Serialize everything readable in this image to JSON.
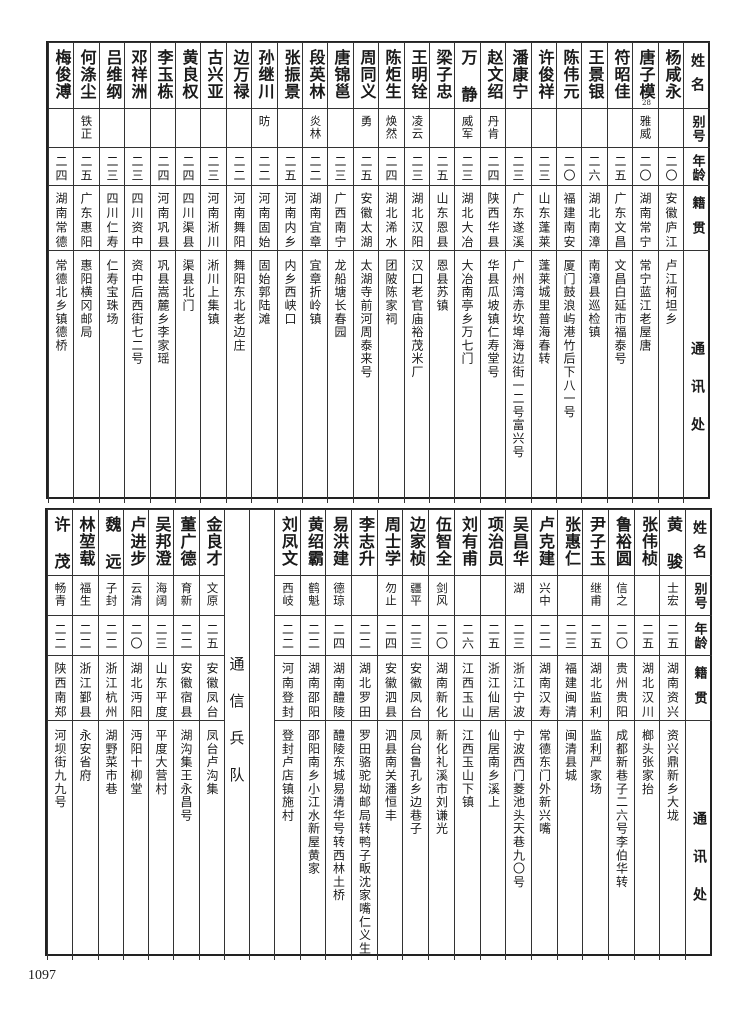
{
  "headers": {
    "name": "姓名",
    "alias": "别号",
    "age": "年龄",
    "origin": "籍贯",
    "address": "通讯处"
  },
  "top_table": {
    "rows": [
      {
        "name": "杨咸永",
        "alias": "",
        "age": "二〇",
        "origin": "安徽庐江",
        "address": "卢江柯坦乡"
      },
      {
        "name": "唐子模",
        "note": "28",
        "alias": "雅威",
        "age": "二〇",
        "origin": "湖南常宁",
        "address": "常宁蓝江老屋唐"
      },
      {
        "name": "符昭佳",
        "alias": "",
        "age": "二五",
        "origin": "广东文昌",
        "address": "文昌白延市福泰号"
      },
      {
        "name": "王景银",
        "alias": "",
        "age": "二六",
        "origin": "湖北南漳",
        "address": "南漳县巡检镇"
      },
      {
        "name": "陈伟元",
        "alias": "",
        "age": "二〇",
        "origin": "福建南安",
        "address": "厦门鼓浪屿港竹后下八一号"
      },
      {
        "name": "许俊祥",
        "alias": "",
        "age": "二三",
        "origin": "山东蓬莱",
        "address": "蓬莱城里普海春转"
      },
      {
        "name": "潘康宁",
        "alias": "",
        "age": "二三",
        "origin": "广东遂溪",
        "address": "广州湾赤坎埠海边街一二号富兴号"
      },
      {
        "name": "赵文绍",
        "alias": "丹肯",
        "age": "二四",
        "origin": "陕西华县",
        "address": "华县瓜坡镇仁寿堂号"
      },
      {
        "name": "万 静",
        "alias": "威军",
        "age": "二三",
        "origin": "湖北大冶",
        "address": "大冶南亭乡万七门"
      },
      {
        "name": "梁子忠",
        "alias": "",
        "age": "二五",
        "origin": "山东恩县",
        "address": "恩县苏镇"
      },
      {
        "name": "王明铨",
        "alias": "凌云",
        "age": "二三",
        "origin": "湖北汉阳",
        "address": "汉口老官庙裕茂米厂"
      },
      {
        "name": "陈炬生",
        "alias": "焕然",
        "age": "二四",
        "origin": "湖北浠水",
        "address": "团陂陈家祠"
      },
      {
        "name": "周同义",
        "alias": "勇",
        "age": "二五",
        "origin": "安徽太湖",
        "address": "太湖寺前河周泰来号"
      },
      {
        "name": "唐锦邕",
        "alias": "",
        "age": "二三",
        "origin": "广西南宁",
        "address": "龙船塘长春园"
      },
      {
        "name": "段英林",
        "alias": "炎林",
        "age": "二二",
        "origin": "湖南宜章",
        "address": "宜章折岭镇"
      },
      {
        "name": "张振景",
        "alias": "",
        "age": "二五",
        "origin": "河南内乡",
        "address": "内乡西峡口"
      },
      {
        "name": "孙继川",
        "alias": "昉",
        "age": "二二",
        "origin": "河南固始",
        "address": "固始郭陆滩"
      },
      {
        "name": "边万禄",
        "alias": "",
        "age": "二二",
        "origin": "河南舞阳",
        "address": "舞阳东北老边庄"
      },
      {
        "name": "古兴亚",
        "alias": "",
        "age": "二三",
        "origin": "河南淅川",
        "address": "淅川上集镇"
      },
      {
        "name": "黄良权",
        "alias": "",
        "age": "二四",
        "origin": "四川渠县",
        "address": "渠县北门"
      },
      {
        "name": "李玉栋",
        "alias": "",
        "age": "二四",
        "origin": "河南巩县",
        "address": "巩县嵩麓乡李家瑶"
      },
      {
        "name": "邓祥洲",
        "alias": "",
        "age": "二三",
        "origin": "四川资中",
        "address": "资中后西街七二号"
      },
      {
        "name": "吕维纲",
        "alias": "",
        "age": "二三",
        "origin": "四川仁寿",
        "address": "仁寿宝珠场"
      },
      {
        "name": "何涤尘",
        "alias": "铁正",
        "age": "二五",
        "origin": "广东惠阳",
        "address": "惠阳横冈邮局"
      },
      {
        "name": "梅俊溥",
        "alias": "",
        "age": "二四",
        "origin": "湖南常德",
        "address": "常德北乡镇德桥"
      }
    ]
  },
  "bottom_table": {
    "right_group": [
      {
        "name": "黄 骏",
        "alias": "士宏",
        "age": "二五",
        "origin": "湖南资兴",
        "address": "资兴鼎新乡大垅"
      },
      {
        "name": "张伟桢",
        "alias": "",
        "age": "二五",
        "origin": "湖北汉川",
        "address": "榔头张家抬"
      },
      {
        "name": "鲁裕圆",
        "alias": "信之",
        "age": "二〇",
        "origin": "贵州贵阳",
        "address": "成都新巷子二六号李伯华转"
      },
      {
        "name": "尹子玉",
        "alias": "继甫",
        "age": "二五",
        "origin": "湖北监利",
        "address": "监利严家场"
      },
      {
        "name": "张惠仁",
        "alias": "",
        "age": "二三",
        "origin": "福建闽清",
        "address": "闽清县城"
      },
      {
        "name": "卢克建",
        "alias": "兴中",
        "age": "二二",
        "origin": "湖南汉寿",
        "address": "常德东门外新兴嘴"
      },
      {
        "name": "吴昌华",
        "alias": "湖",
        "age": "二三",
        "origin": "浙江宁波",
        "address": "宁波西门菱池头天巷九〇号"
      },
      {
        "name": "项治员",
        "alias": "",
        "age": "二五",
        "origin": "浙江仙居",
        "address": "仙居南乡溪上"
      },
      {
        "name": "刘有甫",
        "alias": "",
        "age": "二六",
        "origin": "江西玉山",
        "address": "江西玉山下镇"
      },
      {
        "name": "伍智全",
        "alias": "剑风",
        "age": "二〇",
        "origin": "湖南新化",
        "address": "新化礼溪市刘谦光"
      },
      {
        "name": "边家桢",
        "alias": "疆平",
        "age": "二三",
        "origin": "安徽凤台",
        "address": "凤台鲁孔乡边巷子"
      },
      {
        "name": "周士学",
        "alias": "勿止",
        "age": "二四",
        "origin": "安徽泗县",
        "address": "泗县南关潘恒丰"
      },
      {
        "name": "李志升",
        "alias": "",
        "age": "二二",
        "origin": "湖北罗田",
        "address": "罗田骆驼坳邮局转鸭子畈沈家嘴仁义生"
      },
      {
        "name": "易洪建",
        "alias": "德琼",
        "age": "二四",
        "origin": "湖南醴陵",
        "address": "醴陵东城易清华号转西林土桥"
      },
      {
        "name": "黄绍霸",
        "alias": "鹤魁",
        "age": "二二",
        "origin": "湖南邵阳",
        "address": "邵阳南乡小江水新屋黄家"
      },
      {
        "name": "刘凤文",
        "alias": "西岐",
        "age": "二二",
        "origin": "河南登封",
        "address": "登封卢店镇施村"
      }
    ],
    "section_label": "通信兵队",
    "left_group": [
      {
        "name": "金良才",
        "alias": "文原",
        "age": "二五",
        "origin": "安徽凤台",
        "address": "凤台卢沟集"
      },
      {
        "name": "董广德",
        "alias": "育新",
        "age": "二二",
        "origin": "安徽宿县",
        "address": "湖沟集王永昌号"
      },
      {
        "name": "吴邦澄",
        "alias": "海阔",
        "age": "二三",
        "origin": "山东平度",
        "address": "平度大营村"
      },
      {
        "name": "卢进步",
        "alias": "云清",
        "age": "二〇",
        "origin": "湖北沔阳",
        "address": "沔阳十柳堂"
      },
      {
        "name": "魏 远",
        "alias": "子封",
        "age": "二二",
        "origin": "浙江杭州",
        "address": "湖野菜市巷"
      },
      {
        "name": "林堃载",
        "alias": "福生",
        "age": "二二",
        "origin": "浙江鄞县",
        "address": "永安省府"
      },
      {
        "name": "许 茂",
        "alias": "畅青",
        "age": "二二",
        "origin": "陕西南郑",
        "address": "河坝街九九号"
      }
    ]
  },
  "page_number": "1097"
}
